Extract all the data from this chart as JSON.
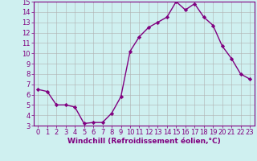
{
  "x": [
    0,
    1,
    2,
    3,
    4,
    5,
    6,
    7,
    8,
    9,
    10,
    11,
    12,
    13,
    14,
    15,
    16,
    17,
    18,
    19,
    20,
    21,
    22,
    23
  ],
  "y": [
    6.5,
    6.3,
    5.0,
    5.0,
    4.8,
    3.2,
    3.3,
    3.3,
    4.2,
    5.8,
    10.2,
    11.6,
    12.5,
    13.0,
    13.5,
    15.0,
    14.2,
    14.8,
    13.5,
    12.7,
    10.7,
    9.5,
    8.0,
    7.5
  ],
  "line_color": "#800080",
  "marker": "D",
  "marker_size": 2.2,
  "xlabel": "Windchill (Refroidissement éolien,°C)",
  "xlabel_fontsize": 6.5,
  "ylim": [
    3,
    15
  ],
  "xlim": [
    -0.5,
    23.5
  ],
  "yticks": [
    3,
    4,
    5,
    6,
    7,
    8,
    9,
    10,
    11,
    12,
    13,
    14,
    15
  ],
  "xticks": [
    0,
    1,
    2,
    3,
    4,
    5,
    6,
    7,
    8,
    9,
    10,
    11,
    12,
    13,
    14,
    15,
    16,
    17,
    18,
    19,
    20,
    21,
    22,
    23
  ],
  "bg_color": "#cff0f0",
  "grid_color": "#b0b0b0",
  "tick_color": "#800080",
  "tick_fontsize": 6.0,
  "line_width": 1.0,
  "spine_color": "#800080"
}
